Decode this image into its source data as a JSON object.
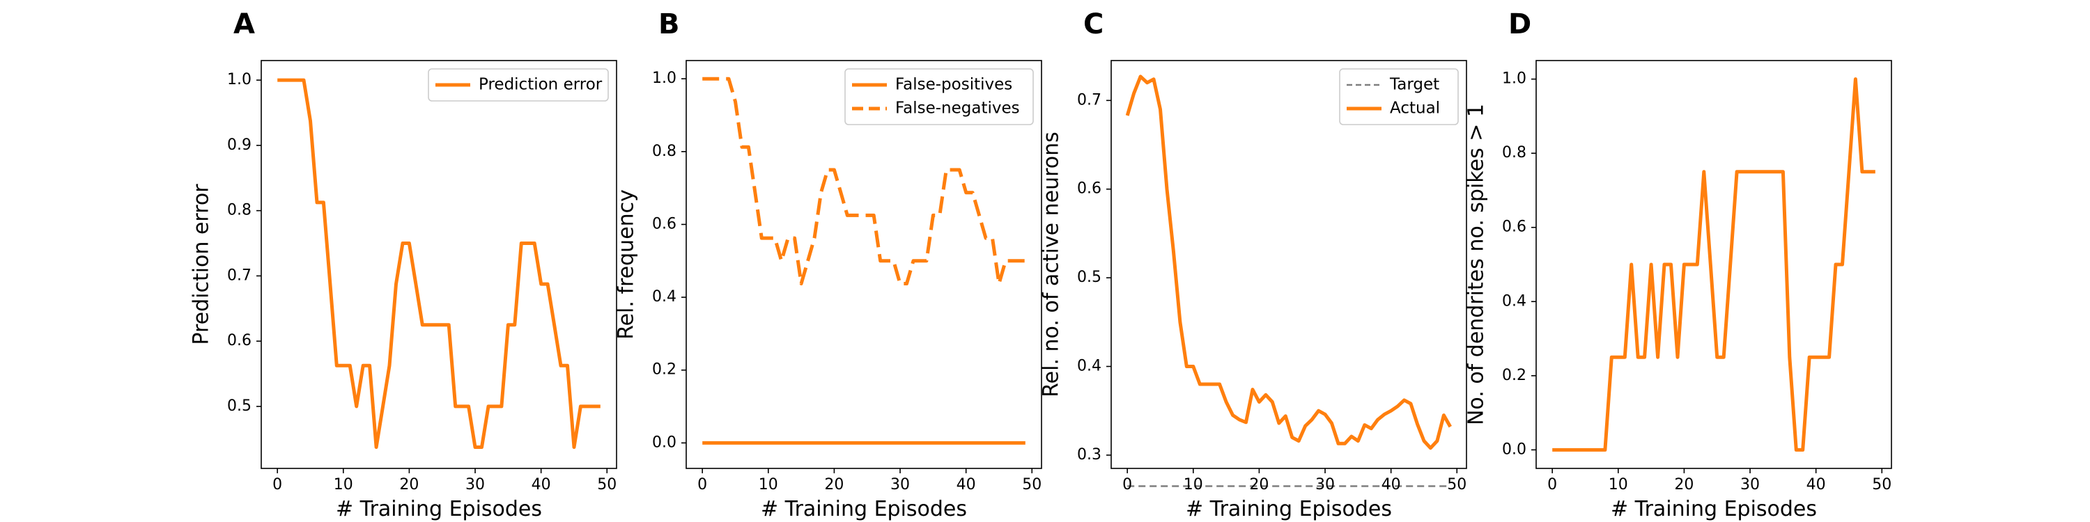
{
  "colors": {
    "series": "#ff7f0e",
    "target": "#7f7f7f",
    "axis": "#000000"
  },
  "chart_data": [
    {
      "id": "A",
      "panel_letter": "A",
      "type": "line",
      "xlabel": "# Training Episodes",
      "ylabel": "Prediction error",
      "xlim": [
        -2.45,
        51.45
      ],
      "ylim": [
        0.405,
        1.03
      ],
      "xticks": [
        0,
        10,
        20,
        30,
        40,
        50
      ],
      "yticks": [
        0.5,
        0.6,
        0.7,
        0.8,
        0.9,
        1.0
      ],
      "ytick_labels": [
        "0.5",
        "0.6",
        "0.7",
        "0.8",
        "0.9",
        "1.0"
      ],
      "legend": "top-right",
      "series": [
        {
          "name": "Prediction error",
          "style": "solid",
          "x": [
            0,
            1,
            2,
            3,
            4,
            5,
            6,
            7,
            8,
            9,
            10,
            11,
            12,
            13,
            14,
            15,
            16,
            17,
            18,
            19,
            20,
            21,
            22,
            23,
            24,
            25,
            26,
            27,
            28,
            29,
            30,
            31,
            32,
            33,
            34,
            35,
            36,
            37,
            38,
            39,
            40,
            41,
            42,
            43,
            44,
            45,
            46,
            47,
            48,
            49
          ],
          "y": [
            1.0,
            1.0,
            1.0,
            1.0,
            1.0,
            0.9375,
            0.8125,
            0.8125,
            0.6875,
            0.5625,
            0.5625,
            0.5625,
            0.5,
            0.5625,
            0.5625,
            0.4375,
            0.5,
            0.5625,
            0.6875,
            0.75,
            0.75,
            0.6875,
            0.625,
            0.625,
            0.625,
            0.625,
            0.625,
            0.5,
            0.5,
            0.5,
            0.4375,
            0.4375,
            0.5,
            0.5,
            0.5,
            0.625,
            0.625,
            0.75,
            0.75,
            0.75,
            0.6875,
            0.6875,
            0.625,
            0.5625,
            0.5625,
            0.4375,
            0.5,
            0.5,
            0.5,
            0.5
          ]
        }
      ]
    },
    {
      "id": "B",
      "panel_letter": "B",
      "type": "line",
      "xlabel": "# Training Episodes",
      "ylabel": "Rel. frequency",
      "xlim": [
        -2.45,
        51.45
      ],
      "ylim": [
        -0.07,
        1.05
      ],
      "xticks": [
        0,
        10,
        20,
        30,
        40,
        50
      ],
      "yticks": [
        0.0,
        0.2,
        0.4,
        0.6,
        0.8,
        1.0
      ],
      "ytick_labels": [
        "0.0",
        "0.2",
        "0.4",
        "0.6",
        "0.8",
        "1.0"
      ],
      "legend": "top-right",
      "series": [
        {
          "name": "False-positives",
          "style": "solid",
          "x": [
            0,
            1,
            2,
            3,
            4,
            5,
            6,
            7,
            8,
            9,
            10,
            11,
            12,
            13,
            14,
            15,
            16,
            17,
            18,
            19,
            20,
            21,
            22,
            23,
            24,
            25,
            26,
            27,
            28,
            29,
            30,
            31,
            32,
            33,
            34,
            35,
            36,
            37,
            38,
            39,
            40,
            41,
            42,
            43,
            44,
            45,
            46,
            47,
            48,
            49
          ],
          "y": [
            0,
            0,
            0,
            0,
            0,
            0,
            0,
            0,
            0,
            0,
            0,
            0,
            0,
            0,
            0,
            0,
            0,
            0,
            0,
            0,
            0,
            0,
            0,
            0,
            0,
            0,
            0,
            0,
            0,
            0,
            0,
            0,
            0,
            0,
            0,
            0,
            0,
            0,
            0,
            0,
            0,
            0,
            0,
            0,
            0,
            0,
            0,
            0,
            0,
            0
          ]
        },
        {
          "name": "False-negatives",
          "style": "dashed",
          "x": [
            0,
            1,
            2,
            3,
            4,
            5,
            6,
            7,
            8,
            9,
            10,
            11,
            12,
            13,
            14,
            15,
            16,
            17,
            18,
            19,
            20,
            21,
            22,
            23,
            24,
            25,
            26,
            27,
            28,
            29,
            30,
            31,
            32,
            33,
            34,
            35,
            36,
            37,
            38,
            39,
            40,
            41,
            42,
            43,
            44,
            45,
            46,
            47,
            48,
            49
          ],
          "y": [
            1.0,
            1.0,
            1.0,
            1.0,
            1.0,
            0.9375,
            0.8125,
            0.8125,
            0.6875,
            0.5625,
            0.5625,
            0.5625,
            0.5,
            0.5625,
            0.5625,
            0.4375,
            0.5,
            0.5625,
            0.6875,
            0.75,
            0.75,
            0.6875,
            0.625,
            0.625,
            0.625,
            0.625,
            0.625,
            0.5,
            0.5,
            0.5,
            0.4375,
            0.4375,
            0.5,
            0.5,
            0.5,
            0.625,
            0.625,
            0.75,
            0.75,
            0.75,
            0.6875,
            0.6875,
            0.625,
            0.5625,
            0.5625,
            0.4375,
            0.5,
            0.5,
            0.5,
            0.5
          ]
        }
      ]
    },
    {
      "id": "C",
      "panel_letter": "C",
      "type": "line",
      "xlabel": "# Training Episodes",
      "ylabel": "Rel. no. of active neurons",
      "xlim": [
        -2.45,
        51.45
      ],
      "ylim": [
        0.285,
        0.745
      ],
      "xticks": [
        0,
        10,
        20,
        30,
        40,
        50
      ],
      "yticks": [
        0.3,
        0.4,
        0.5,
        0.6,
        0.7
      ],
      "ytick_labels": [
        "0.3",
        "0.4",
        "0.5",
        "0.6",
        "0.7"
      ],
      "legend": "top-right",
      "series": [
        {
          "name": "Target",
          "style": "dashed-thin",
          "x": [
            0,
            49
          ],
          "y": [
            0.265,
            0.265
          ]
        },
        {
          "name": "Actual",
          "style": "solid",
          "x": [
            0,
            1,
            2,
            3,
            4,
            5,
            6,
            7,
            8,
            9,
            10,
            11,
            12,
            13,
            14,
            15,
            16,
            17,
            18,
            19,
            20,
            21,
            22,
            23,
            24,
            25,
            26,
            27,
            28,
            29,
            30,
            31,
            32,
            33,
            34,
            35,
            36,
            37,
            38,
            39,
            40,
            41,
            42,
            43,
            44,
            45,
            46,
            47,
            48,
            49
          ],
          "y": [
            0.683,
            0.708,
            0.727,
            0.72,
            0.724,
            0.69,
            0.6,
            0.53,
            0.45,
            0.4,
            0.4,
            0.38,
            0.38,
            0.38,
            0.38,
            0.36,
            0.345,
            0.34,
            0.337,
            0.374,
            0.36,
            0.368,
            0.36,
            0.336,
            0.344,
            0.32,
            0.316,
            0.333,
            0.34,
            0.35,
            0.346,
            0.336,
            0.313,
            0.313,
            0.321,
            0.316,
            0.334,
            0.33,
            0.34,
            0.346,
            0.35,
            0.355,
            0.362,
            0.358,
            0.335,
            0.316,
            0.308,
            0.316,
            0.345,
            0.332
          ]
        }
      ]
    },
    {
      "id": "D",
      "panel_letter": "D",
      "type": "line",
      "xlabel": "# Training Episodes",
      "ylabel": "No. of dendrites no. spikes > 1",
      "xlim": [
        -2.45,
        51.45
      ],
      "ylim": [
        -0.05,
        1.05
      ],
      "xticks": [
        0,
        10,
        20,
        30,
        40,
        50
      ],
      "yticks": [
        0.0,
        0.2,
        0.4,
        0.6,
        0.8,
        1.0
      ],
      "ytick_labels": [
        "0.0",
        "0.2",
        "0.4",
        "0.6",
        "0.8",
        "1.0"
      ],
      "legend": "none",
      "series": [
        {
          "name": "",
          "style": "solid",
          "x": [
            0,
            1,
            2,
            3,
            4,
            5,
            6,
            7,
            8,
            9,
            10,
            11,
            12,
            13,
            14,
            15,
            16,
            17,
            18,
            19,
            20,
            21,
            22,
            23,
            24,
            25,
            26,
            27,
            28,
            29,
            30,
            31,
            32,
            33,
            34,
            35,
            36,
            37,
            38,
            39,
            40,
            41,
            42,
            43,
            44,
            45,
            46,
            47,
            48,
            49
          ],
          "y": [
            0,
            0,
            0,
            0,
            0,
            0,
            0,
            0,
            0,
            0.25,
            0.25,
            0.25,
            0.5,
            0.25,
            0.25,
            0.5,
            0.25,
            0.5,
            0.5,
            0.25,
            0.5,
            0.5,
            0.5,
            0.75,
            0.5,
            0.25,
            0.25,
            0.5,
            0.75,
            0.75,
            0.75,
            0.75,
            0.75,
            0.75,
            0.75,
            0.75,
            0.25,
            0,
            0,
            0.25,
            0.25,
            0.25,
            0.25,
            0.5,
            0.5,
            0.75,
            1.0,
            0.75,
            0.75,
            0.75
          ]
        }
      ]
    }
  ]
}
